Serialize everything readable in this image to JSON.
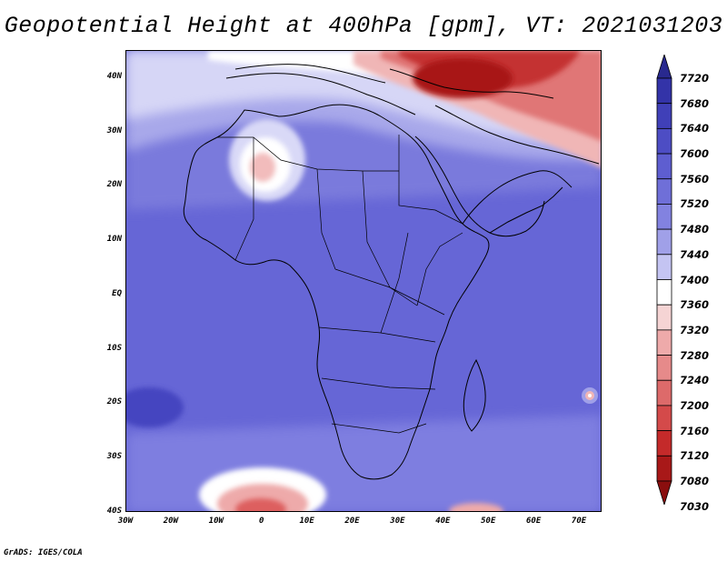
{
  "title": "Geopotential Height at 400hPa [gpm], VT: 2021031203",
  "footer": "GrADS: IGES/COLA",
  "y_axis_labels": [
    "40N",
    "30N",
    "20N",
    "10N",
    "EQ",
    "10S",
    "20S",
    "30S",
    "40S"
  ],
  "x_axis_labels": [
    "30W",
    "20W",
    "10W",
    "0",
    "10E",
    "20E",
    "30E",
    "40E",
    "50E",
    "60E",
    "70E"
  ],
  "colorbar": {
    "labels": [
      "7720",
      "7680",
      "7640",
      "7600",
      "7560",
      "7520",
      "7480",
      "7440",
      "7400",
      "7360",
      "7320",
      "7280",
      "7240",
      "7200",
      "7160",
      "7120",
      "7080",
      "7030"
    ],
    "colors": [
      "#29298f",
      "#3333a8",
      "#4040b8",
      "#4d4dc4",
      "#5e5ed0",
      "#6f6fd8",
      "#8282e0",
      "#a0a0e8",
      "#c4c4f2",
      "#ffffff",
      "#f5d4d4",
      "#eeaaaa",
      "#e68a8a",
      "#dd6a6a",
      "#d44a4a",
      "#c42a2a",
      "#a81818",
      "#8a0e0e"
    ]
  },
  "map": {
    "lat_range": [
      -40,
      45
    ],
    "lon_range": [
      -30,
      75
    ],
    "background_color": "#6464d4"
  }
}
